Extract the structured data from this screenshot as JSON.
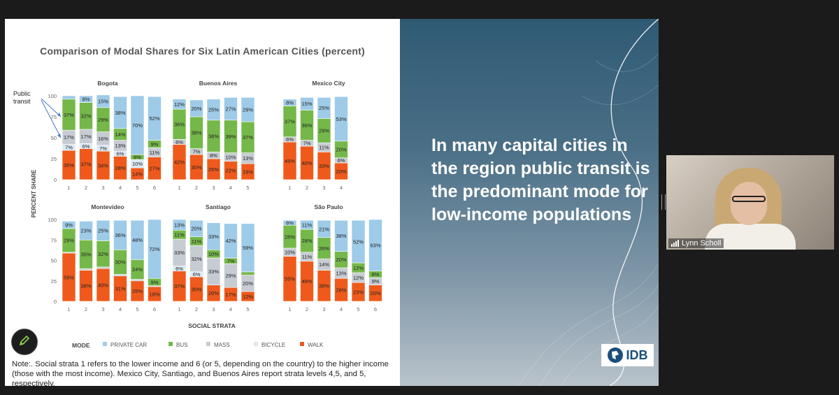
{
  "slide": {
    "headline": "In many capital cities in the region public transit is the predominant mode for low-income populations",
    "logo_text": "IDB",
    "note": "Note:. Social strata 1 refers to the lower income and 6 (or 5, depending on the country) to the higher income (those with the most income). Mexico City, Santiago, and Buenos Aires report strata levels 4,5, and 5, respectively."
  },
  "webcam": {
    "participant_name": "Lynn Scholl"
  },
  "icons": {
    "annotate": "pencil-icon",
    "signal": "signal-bars-icon",
    "logo": "idb-globe-icon"
  },
  "colors": {
    "private_car": "#9ecbe8",
    "bus": "#74b84a",
    "mass": "#c7ccd3",
    "bicycle": "#dbe9f3",
    "walk": "#ef5a1c"
  },
  "chart_data": {
    "type": "bar",
    "stacked": true,
    "title": "Comparison of Modal Shares for Six Latin American Cities (percent)",
    "ylabel": "PERCENT SHARE",
    "xlabel": "SOCIAL STRATA",
    "ylim": [
      0,
      100
    ],
    "yticks": [
      0,
      25,
      50,
      75,
      100
    ],
    "legend_title": "MODE",
    "legend_position": "bottom",
    "legend": [
      "PRIVATE CAR",
      "BUS",
      "MASS",
      "BICYCLE",
      "WALK"
    ],
    "annotation": "Public transit",
    "panels": [
      {
        "city": "Bogota",
        "categories": [
          "1",
          "2",
          "3",
          "4",
          "5",
          "6"
        ],
        "series": [
          {
            "name": "WALK",
            "values": [
              35,
              37,
              34,
              28,
              14,
              27
            ]
          },
          {
            "name": "BICYCLE",
            "values": [
              7,
              6,
              7,
              6,
              10,
              0
            ]
          },
          {
            "name": "MASS",
            "values": [
              17,
              17,
              16,
              13,
              0,
              11
            ]
          },
          {
            "name": "BUS",
            "values": [
              37,
              32,
              29,
              14,
              6,
              9
            ]
          },
          {
            "name": "PRIVATE CAR",
            "values": [
              4,
              8,
              15,
              38,
              70,
              52
            ]
          }
        ],
        "labels": {
          "WALK": [
            "35%",
            "37%",
            "34%",
            "28%",
            "14%",
            "27%"
          ],
          "BICYCLE": [
            "7%",
            "6%",
            "7%",
            "6%",
            "10%",
            ""
          ],
          "MASS": [
            "17%",
            "17%",
            "16%",
            "13%",
            "",
            "11%"
          ],
          "BUS": [
            "37%",
            "32%",
            "29%",
            "14%",
            "6%",
            "9%"
          ],
          "PRIVATE CAR": [
            "",
            "8%",
            "15%",
            "38%",
            "70%",
            "52%"
          ]
        }
      },
      {
        "city": "Buenos Aires",
        "categories": [
          "1",
          "2",
          "3",
          "4",
          "5"
        ],
        "series": [
          {
            "name": "WALK",
            "values": [
              42,
              30,
              25,
              22,
              19
            ]
          },
          {
            "name": "BICYCLE",
            "values": [
              0,
              0,
              0,
              0,
              0
            ]
          },
          {
            "name": "MASS",
            "values": [
              6,
              7,
              8,
              10,
              13
            ]
          },
          {
            "name": "BUS",
            "values": [
              36,
              38,
              38,
              39,
              37
            ]
          },
          {
            "name": "PRIVATE CAR",
            "values": [
              12,
              20,
              25,
              27,
              29
            ]
          }
        ],
        "labels": {
          "WALK": [
            "42%",
            "30%",
            "25%",
            "22%",
            "19%"
          ],
          "BICYCLE": [
            "",
            "",
            "",
            "",
            ""
          ],
          "MASS": [
            "6%",
            "7%",
            "8%",
            "10%",
            "13%"
          ],
          "BUS": [
            "36%",
            "38%",
            "38%",
            "39%",
            "37%"
          ],
          "PRIVATE CAR": [
            "12%",
            "20%",
            "25%",
            "27%",
            "29%"
          ]
        }
      },
      {
        "city": "Mexico City",
        "categories": [
          "1",
          "2",
          "3",
          "4"
        ],
        "series": [
          {
            "name": "WALK",
            "values": [
              45,
              40,
              33,
              20
            ]
          },
          {
            "name": "BICYCLE",
            "values": [
              0,
              0,
              0,
              0
            ]
          },
          {
            "name": "MASS",
            "values": [
              6,
              7,
              11,
              6
            ]
          },
          {
            "name": "BUS",
            "values": [
              37,
              36,
              29,
              20
            ]
          },
          {
            "name": "PRIVATE CAR",
            "values": [
              8,
              15,
              25,
              53
            ]
          }
        ],
        "labels": {
          "WALK": [
            "45%",
            "40%",
            "33%",
            "20%"
          ],
          "BICYCLE": [
            "",
            "",
            "",
            ""
          ],
          "MASS": [
            "6%",
            "7%",
            "11%",
            "6%"
          ],
          "BUS": [
            "37%",
            "36%",
            "29%",
            "20%"
          ],
          "PRIVATE CAR": [
            "8%",
            "15%",
            "25%",
            "53%"
          ]
        }
      },
      {
        "city": "Montevideo",
        "categories": [
          "1",
          "2",
          "3",
          "4",
          "5",
          "6"
        ],
        "series": [
          {
            "name": "WALK",
            "values": [
              59,
              38,
              40,
              31,
              25,
              18
            ]
          },
          {
            "name": "BICYCLE",
            "values": [
              0,
              0,
              0,
              0,
              0,
              0
            ]
          },
          {
            "name": "MASS",
            "values": [
              1,
              2,
              2,
              2,
              2,
              1
            ]
          },
          {
            "name": "BUS",
            "values": [
              29,
              35,
              32,
              30,
              24,
              9
            ]
          },
          {
            "name": "PRIVATE CAR",
            "values": [
              9,
              23,
              25,
              36,
              48,
              72
            ]
          }
        ],
        "labels": {
          "WALK": [
            "59%",
            "38%",
            "40%",
            "31%",
            "25%",
            "18%"
          ],
          "BICYCLE": [
            "",
            "",
            "",
            "",
            "",
            ""
          ],
          "MASS": [
            "",
            "",
            "",
            "",
            "",
            ""
          ],
          "BUS": [
            "29%",
            "35%",
            "32%",
            "30%",
            "24%",
            "9%"
          ],
          "PRIVATE CAR": [
            "9%",
            "23%",
            "25%",
            "36%",
            "48%",
            "72%"
          ]
        }
      },
      {
        "city": "Santiago",
        "categories": [
          "1",
          "2",
          "3",
          "4",
          "5"
        ],
        "series": [
          {
            "name": "WALK",
            "values": [
              37,
              30,
              20,
              17,
              12
            ]
          },
          {
            "name": "BICYCLE",
            "values": [
              6,
              6,
              0,
              0,
              0
            ]
          },
          {
            "name": "MASS",
            "values": [
              33,
              32,
              33,
              29,
              20
            ]
          },
          {
            "name": "BUS",
            "values": [
              11,
              11,
              10,
              7,
              4
            ]
          },
          {
            "name": "PRIVATE CAR",
            "values": [
              13,
              20,
              33,
              42,
              59
            ]
          }
        ],
        "labels": {
          "WALK": [
            "37%",
            "30%",
            "20%",
            "17%",
            "12%"
          ],
          "BICYCLE": [
            "6%",
            "6%",
            "",
            "",
            ""
          ],
          "MASS": [
            "33%",
            "32%",
            "33%",
            "29%",
            "20%"
          ],
          "BUS": [
            "11%",
            "11%",
            "10%",
            "7%",
            ""
          ],
          "PRIVATE CAR": [
            "13%",
            "20%",
            "33%",
            "42%",
            "59%"
          ]
        }
      },
      {
        "city": "São Paulo",
        "categories": [
          "1",
          "2",
          "3",
          "4",
          "5",
          "6"
        ],
        "series": [
          {
            "name": "WALK",
            "values": [
              55,
              49,
              38,
              28,
              23,
              20
            ]
          },
          {
            "name": "BICYCLE",
            "values": [
              0,
              0,
              0,
              0,
              0,
              0
            ]
          },
          {
            "name": "MASS",
            "values": [
              10,
              11,
              14,
              13,
              12,
              9
            ]
          },
          {
            "name": "BUS",
            "values": [
              28,
              28,
              26,
              20,
              12,
              8
            ]
          },
          {
            "name": "PRIVATE CAR",
            "values": [
              6,
              11,
              21,
              38,
              52,
              63
            ]
          }
        ],
        "labels": {
          "WALK": [
            "55%",
            "49%",
            "38%",
            "28%",
            "23%",
            "20%"
          ],
          "BICYCLE": [
            "",
            "",
            "",
            "",
            "",
            ""
          ],
          "MASS": [
            "10%",
            "11%",
            "14%",
            "13%",
            "12%",
            "9%"
          ],
          "BUS": [
            "28%",
            "28%",
            "26%",
            "20%",
            "12%",
            "8%"
          ],
          "PRIVATE CAR": [
            "6%",
            "11%",
            "21%",
            "38%",
            "52%",
            "63%"
          ]
        }
      }
    ]
  }
}
